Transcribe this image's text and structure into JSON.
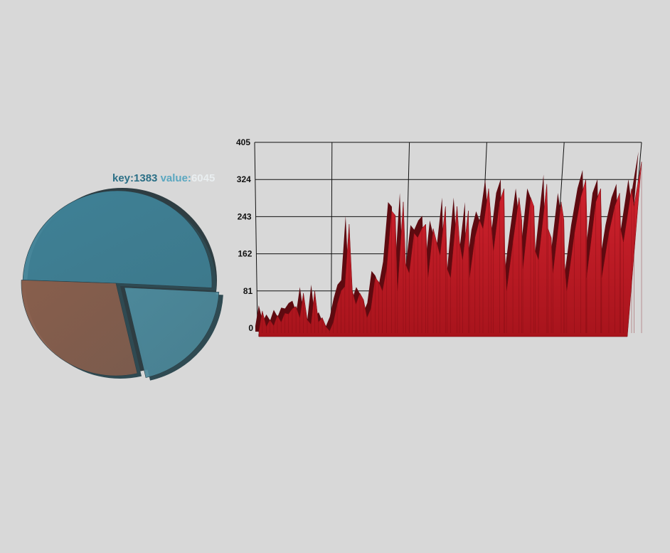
{
  "colors": {
    "background": "#d8d8d8",
    "slice_large": "#3f8196",
    "slice_small": "#4c889a",
    "slice_brown": "#885e4c",
    "area_fill": "#b81a24",
    "area_dark": "#5e0a10",
    "label_key": "#2b6f86",
    "label_value": "#5aa7c0",
    "label_number": "#e9eef0"
  },
  "pie_label": {
    "key_text": "key:",
    "key_value": "1383",
    "value_text": " value:",
    "value_value": "6045"
  },
  "chart_data": [
    {
      "type": "pie",
      "slices": [
        {
          "value": 6045
        },
        {
          "value": 2478
        },
        {
          "value": 3512
        }
      ]
    },
    {
      "type": "area",
      "ylim": [
        0,
        405
      ],
      "yticks": [
        "0",
        "81",
        "162",
        "243",
        "324",
        "405"
      ],
      "grid": true,
      "values": [
        0,
        45,
        10,
        25,
        12,
        35,
        20,
        40,
        38,
        50,
        55,
        30,
        85,
        25,
        15,
        90,
        20,
        30,
        10,
        0,
        20,
        60,
        90,
        100,
        240,
        90,
        60,
        85,
        70,
        30,
        50,
        120,
        110,
        90,
        140,
        270,
        260,
        90,
        290,
        150,
        130,
        220,
        210,
        230,
        240,
        120,
        230,
        200,
        170,
        280,
        140,
        120,
        280,
        200,
        160,
        270,
        120,
        210,
        250,
        230,
        320,
        250,
        180,
        290,
        320,
        180,
        90,
        200,
        300,
        250,
        140,
        300,
        280,
        180,
        160,
        330,
        230,
        210,
        130,
        290,
        250,
        150,
        90,
        220,
        300,
        340,
        250,
        120,
        290,
        320,
        230,
        120,
        220,
        280,
        310,
        230,
        200,
        320,
        280,
        380
      ]
    }
  ]
}
